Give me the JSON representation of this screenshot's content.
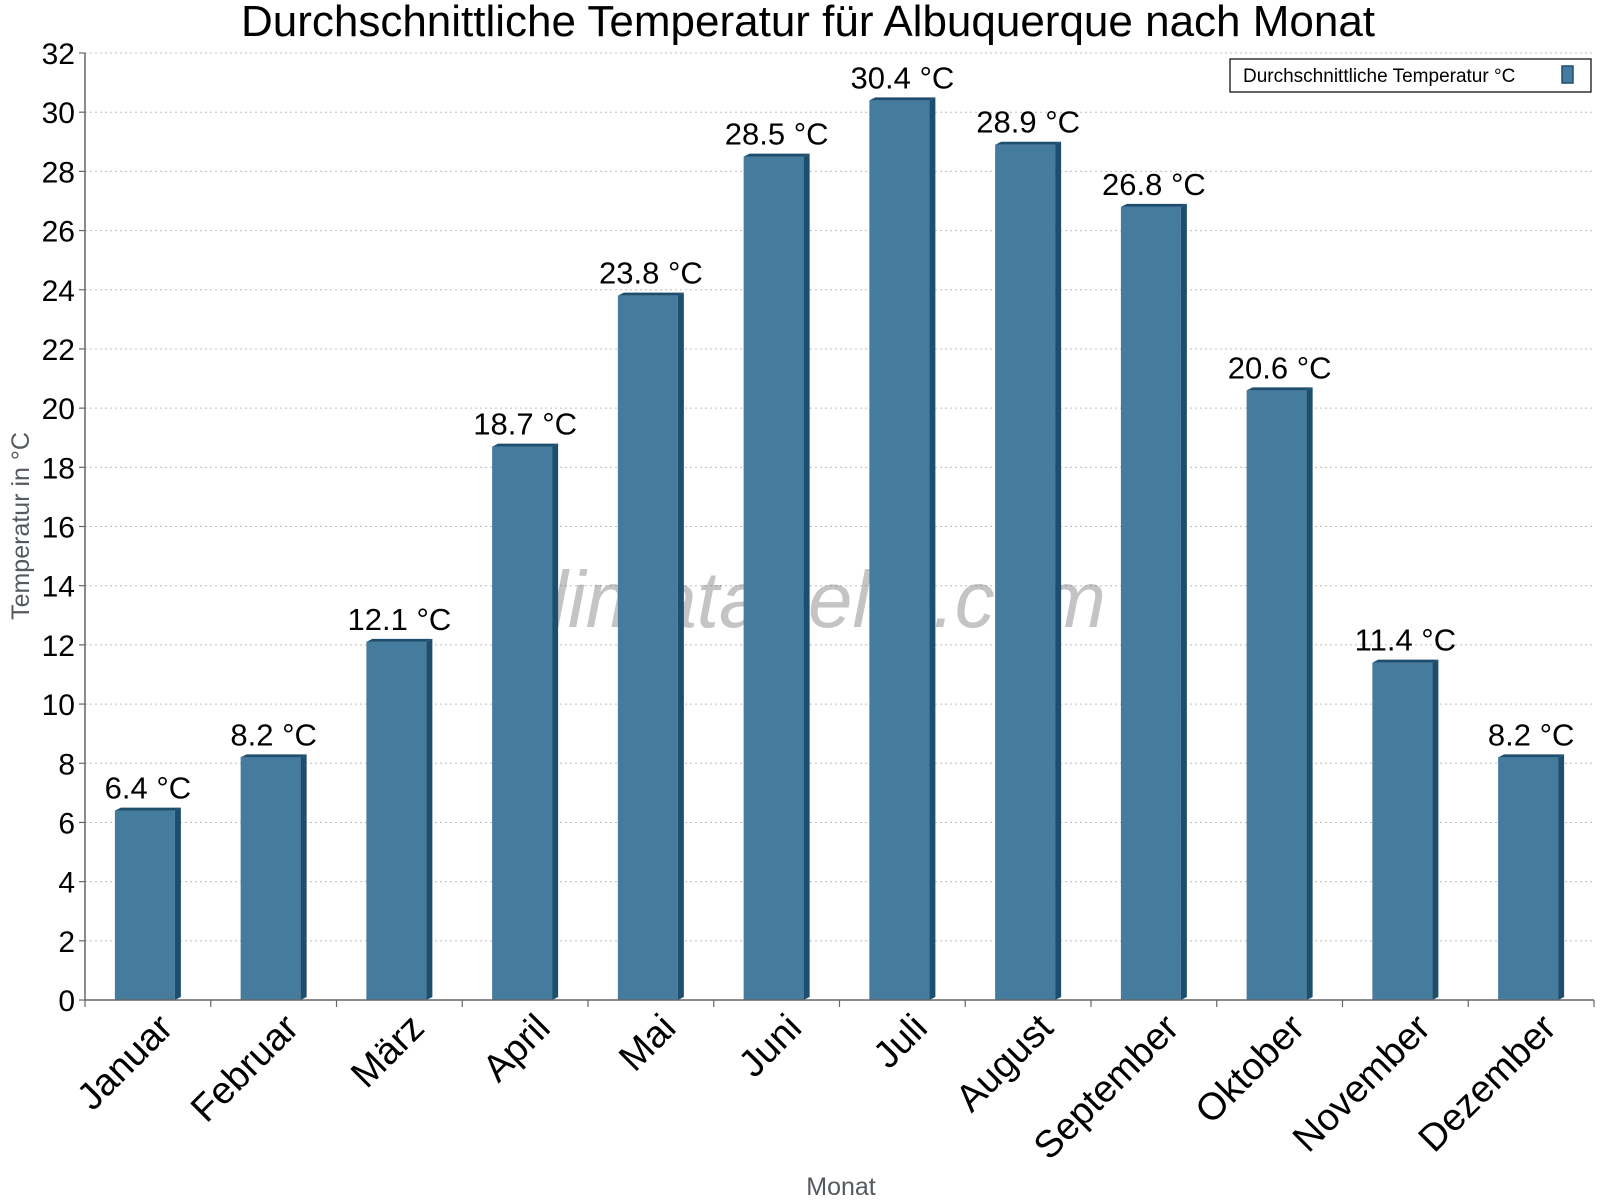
{
  "watermark": "klimatabelle.com",
  "chart_data": {
    "type": "bar",
    "title": "Durchschnittliche Temperatur für Albuquerque nach Monat",
    "xlabel": "Monat",
    "ylabel": "Temperatur in °C",
    "categories": [
      "Januar",
      "Februar",
      "März",
      "April",
      "Mai",
      "Juni",
      "Juli",
      "August",
      "September",
      "Oktober",
      "November",
      "Dezember"
    ],
    "series": [
      {
        "name": "Durchschnittliche Temperatur °C",
        "values": [
          6.4,
          8.2,
          12.1,
          18.7,
          23.8,
          28.5,
          30.4,
          28.9,
          26.8,
          20.6,
          11.4,
          8.2
        ],
        "data_labels": [
          "6.4 °C",
          "8.2 °C",
          "12.1 °C",
          "18.7 °C",
          "23.8 °C",
          "28.5 °C",
          "30.4 °C",
          "28.9 °C",
          "26.8 °C",
          "20.6 °C",
          "11.4 °C",
          "8.2 °C"
        ],
        "color": "#457b9d",
        "edge_color": "#1d4e6e"
      }
    ],
    "ylim": [
      0,
      32
    ],
    "yticks": [
      0,
      2,
      4,
      6,
      8,
      10,
      12,
      14,
      16,
      18,
      20,
      22,
      24,
      26,
      28,
      30,
      32
    ],
    "grid": true,
    "legend_position": "top-right"
  }
}
